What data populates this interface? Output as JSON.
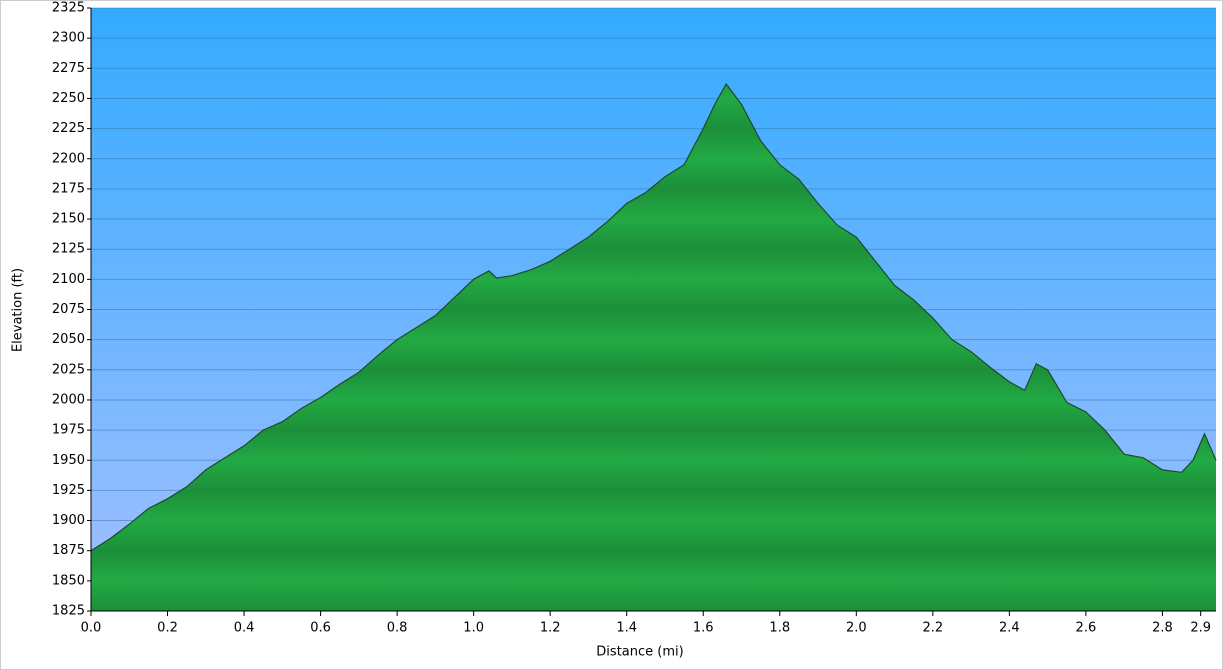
{
  "chart_data": {
    "type": "area",
    "xlabel": "Distance   (mi)",
    "ylabel": "Elevation (ft)",
    "series": [
      {
        "name": "Elevation",
        "color": "#22aa44",
        "x": [
          0.0,
          0.05,
          0.1,
          0.15,
          0.2,
          0.25,
          0.3,
          0.35,
          0.4,
          0.45,
          0.5,
          0.55,
          0.6,
          0.65,
          0.7,
          0.75,
          0.8,
          0.85,
          0.9,
          0.95,
          1.0,
          1.04,
          1.06,
          1.1,
          1.15,
          1.2,
          1.25,
          1.3,
          1.35,
          1.4,
          1.45,
          1.5,
          1.55,
          1.6,
          1.63,
          1.66,
          1.7,
          1.75,
          1.8,
          1.85,
          1.9,
          1.95,
          2.0,
          2.05,
          2.1,
          2.15,
          2.2,
          2.25,
          2.3,
          2.35,
          2.4,
          2.44,
          2.47,
          2.5,
          2.55,
          2.6,
          2.65,
          2.7,
          2.75,
          2.8,
          2.85,
          2.88,
          2.91,
          2.94
        ],
        "values": [
          1875,
          1885,
          1897,
          1910,
          1918,
          1928,
          1942,
          1952,
          1962,
          1975,
          1982,
          1993,
          2002,
          2013,
          2023,
          2037,
          2050,
          2060,
          2070,
          2085,
          2100,
          2107,
          2101,
          2103,
          2108,
          2115,
          2125,
          2135,
          2148,
          2163,
          2172,
          2185,
          2195,
          2225,
          2245,
          2262,
          2245,
          2215,
          2195,
          2183,
          2163,
          2145,
          2135,
          2115,
          2095,
          2083,
          2068,
          2050,
          2040,
          2027,
          2015,
          2008,
          2030,
          2025,
          1998,
          1990,
          1975,
          1955,
          1952,
          1942,
          1940,
          1950,
          1972,
          1950
        ]
      }
    ],
    "xlim": [
      0,
      2.94
    ],
    "ylim": [
      1825,
      2325
    ],
    "xticks": [
      {
        "value": 0,
        "label": "0.0"
      },
      0.2,
      0.4,
      0.6,
      0.8,
      {
        "value": 1,
        "label": "1.0"
      },
      1.2,
      1.4,
      1.6,
      1.8,
      {
        "value": 2,
        "label": "2.0"
      },
      2.2,
      2.4,
      2.6,
      2.8,
      2.9
    ],
    "yticks": [
      1825,
      1850,
      1875,
      1900,
      1925,
      1950,
      1975,
      2000,
      2025,
      2050,
      2075,
      2100,
      2125,
      2150,
      2175,
      2200,
      2225,
      2250,
      2275,
      2300,
      2325
    ],
    "grid": true
  }
}
